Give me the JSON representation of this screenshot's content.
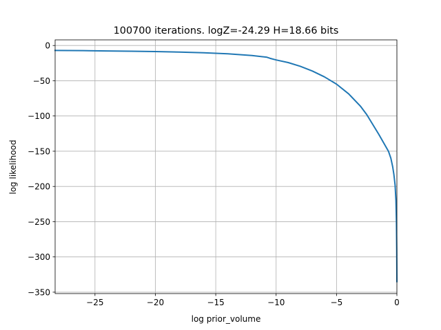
{
  "chart_data": {
    "type": "line",
    "title": "100700 iterations. logZ=-24.29 H=18.66 bits",
    "xlabel": "log prior_volume",
    "ylabel": "log likelihood",
    "xlim": [
      -28.3,
      0.0
    ],
    "ylim": [
      -352,
      8
    ],
    "grid": true,
    "xticks": [
      -25,
      -20,
      -15,
      -10,
      -5,
      0
    ],
    "xtick_labels": [
      "−25",
      "−20",
      "−15",
      "−10",
      "−5",
      "0"
    ],
    "yticks": [
      0,
      -50,
      -100,
      -150,
      -200,
      -250,
      -300,
      -350
    ],
    "ytick_labels": [
      "0",
      "−50",
      "−100",
      "−150",
      "−200",
      "−250",
      "−300",
      "−350"
    ],
    "series": [
      {
        "color": "#1f77b4",
        "x": [
          -28.3,
          -26,
          -24,
          -22,
          -20,
          -18,
          -16,
          -14,
          -12,
          -10.8,
          -10.5,
          -10,
          -9,
          -8,
          -7,
          -6,
          -5,
          -4,
          -3,
          -2.5,
          -2,
          -1.5,
          -1,
          -0.7,
          -0.5,
          -0.35,
          -0.25,
          -0.15,
          -0.08,
          -0.04,
          -0.015,
          0
        ],
        "y": [
          -7,
          -7.3,
          -7.7,
          -8.1,
          -8.6,
          -9.3,
          -10.3,
          -11.8,
          -14.2,
          -16.5,
          -18.2,
          -20.5,
          -24.2,
          -29.5,
          -36.2,
          -44.5,
          -54.8,
          -68.5,
          -86.5,
          -98,
          -112,
          -126,
          -141,
          -150,
          -160,
          -172,
          -183,
          -198,
          -220,
          -250,
          -290,
          -335
        ]
      }
    ]
  }
}
